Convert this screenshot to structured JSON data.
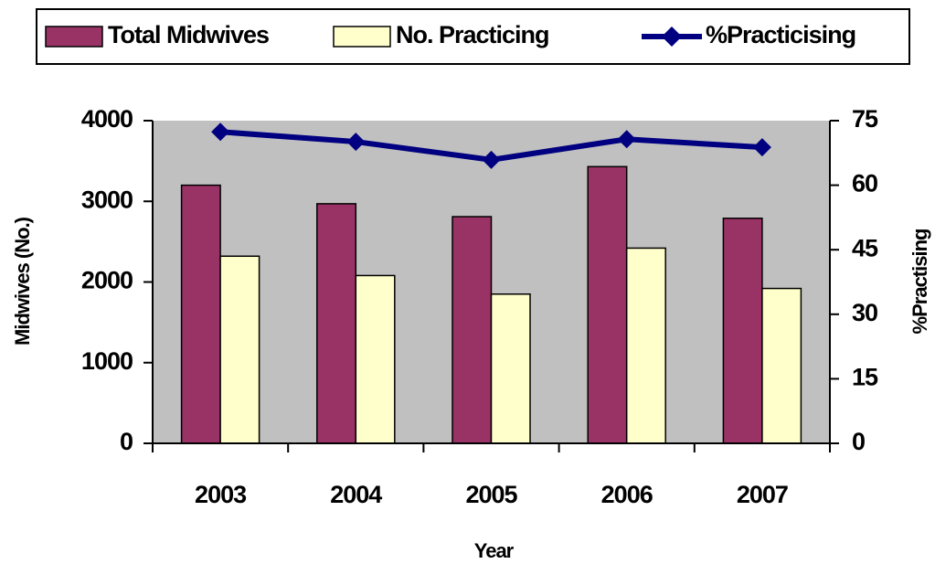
{
  "chart_data": {
    "type": "bar",
    "categories": [
      "2003",
      "2004",
      "2005",
      "2006",
      "2007"
    ],
    "series": [
      {
        "name": "Total Midwives",
        "color": "#993366",
        "values": [
          3200,
          2970,
          2810,
          3430,
          2790
        ]
      },
      {
        "name": "No. Practicing",
        "color": "#ffffcc",
        "values": [
          2320,
          2080,
          1850,
          2420,
          1920
        ]
      },
      {
        "name": "%Practicising",
        "color": "#000080",
        "type": "line",
        "axis": "y2",
        "values": [
          72.4,
          70.1,
          65.9,
          70.7,
          68.8
        ]
      }
    ],
    "x_label": "Year",
    "y_label": "Midwives (No.)",
    "y2_label": "%Practising",
    "ylim": [
      0,
      4000
    ],
    "yticks": [
      0,
      1000,
      2000,
      3000,
      4000
    ],
    "y2lim": [
      0,
      75
    ],
    "y2ticks": [
      0,
      15,
      30,
      45,
      60,
      75
    ],
    "plot_background": "#c0c0c0",
    "legend": "top"
  }
}
